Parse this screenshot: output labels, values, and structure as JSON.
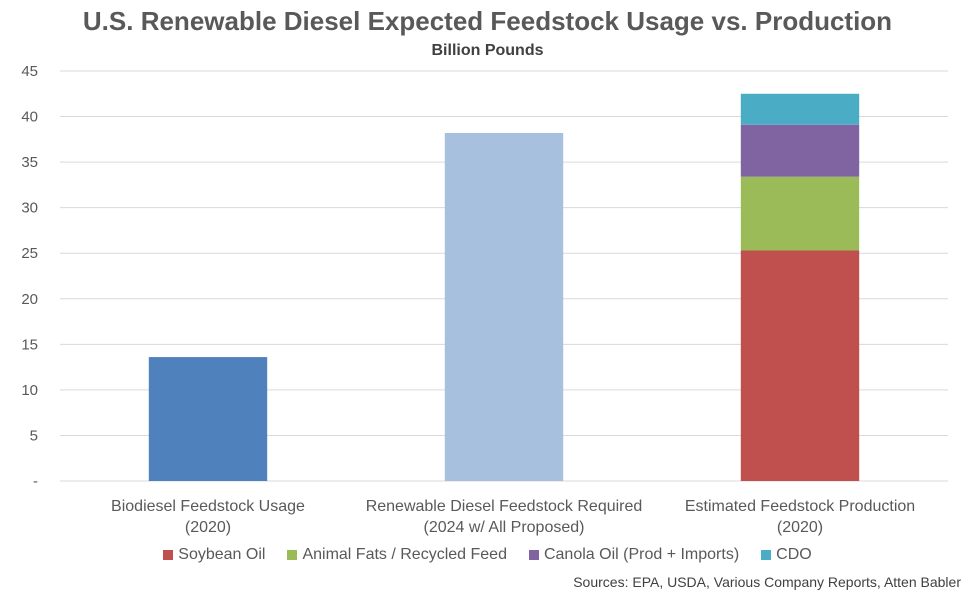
{
  "chart_data": {
    "type": "bar",
    "stacked": true,
    "title": "U.S. Renewable Diesel Expected Feedstock Usage vs. Production",
    "subtitle": "Billion Pounds",
    "ylim": [
      0,
      45
    ],
    "yticks": [
      0,
      5,
      10,
      15,
      20,
      25,
      30,
      35,
      40,
      45
    ],
    "ytick_labels": [
      "-",
      "5",
      "10",
      "15",
      "20",
      "25",
      "30",
      "35",
      "40",
      "45"
    ],
    "grid": true,
    "legend_position": "bottom",
    "categories": [
      [
        "Biodiesel Feedstock Usage",
        "(2020)"
      ],
      [
        "Renewable Diesel Feedstock Required",
        "(2024 w/ All Proposed)"
      ],
      [
        "Estimated Feedstock Production",
        "(2020)"
      ]
    ],
    "unlabeled_bars": [
      {
        "category_index": 0,
        "value": 13.6,
        "color": "#4F81BD"
      },
      {
        "category_index": 1,
        "value": 38.2,
        "color": "#A7C0DE"
      }
    ],
    "series": [
      {
        "name": "Soybean Oil",
        "color": "#C0504D",
        "values": [
          0,
          0,
          25.3
        ]
      },
      {
        "name": "Animal Fats / Recycled Feed",
        "color": "#9BBB59",
        "values": [
          0,
          0,
          8.1
        ]
      },
      {
        "name": "Canola Oil (Prod + Imports)",
        "color": "#8064A2",
        "values": [
          0,
          0,
          5.7
        ]
      },
      {
        "name": "CDO",
        "color": "#4BACC6",
        "values": [
          0,
          0,
          3.4
        ]
      }
    ],
    "source": "Sources: EPA, USDA, Various Company Reports, Atten Babler"
  }
}
